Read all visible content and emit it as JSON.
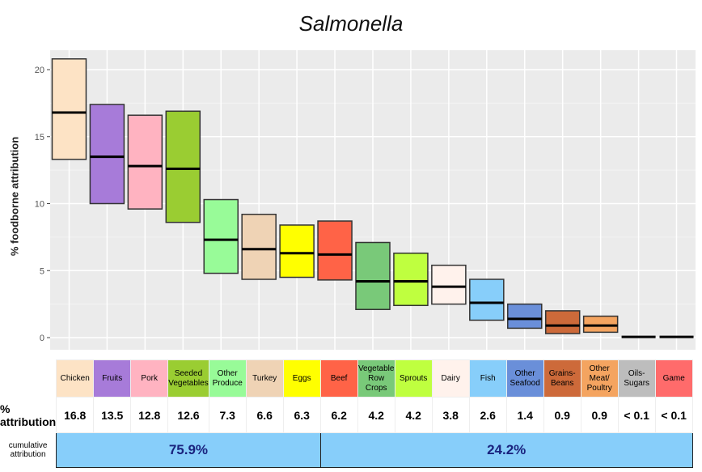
{
  "chart_data": {
    "type": "crossbar",
    "title": "Salmonella",
    "ylabel": "% foodborne attribution",
    "ylim": [
      -1,
      22
    ],
    "yticks": [
      0,
      5,
      10,
      15,
      20
    ],
    "grid": true,
    "categories": [
      "Chicken",
      "Fruits",
      "Pork",
      "Seeded Vegetables",
      "Other Produce",
      "Turkey",
      "Eggs",
      "Beef",
      "Vegetable Row Crops",
      "Sprouts",
      "Dairy",
      "Fish",
      "Other Seafood",
      "Grains-Beans",
      "Other Meat/ Poultry",
      "Oils-Sugars",
      "Game"
    ],
    "colors": [
      "#fde3c5",
      "#a77bd9",
      "#ffb3c1",
      "#9acd32",
      "#98fb98",
      "#efd3b5",
      "#ffff00",
      "#ff6347",
      "#79c979",
      "#bfff3f",
      "#fff2ec",
      "#87cefa",
      "#6a8fd9",
      "#cd6a3a",
      "#f4a460",
      "#bdbdbd",
      "#ff6b6b"
    ],
    "mid": [
      16.8,
      13.5,
      12.8,
      12.6,
      7.3,
      6.6,
      6.3,
      6.2,
      4.2,
      4.2,
      3.8,
      2.6,
      1.4,
      0.9,
      0.9,
      0.05,
      0.05
    ],
    "low": [
      13.3,
      10.0,
      9.6,
      8.6,
      4.8,
      4.35,
      4.5,
      4.3,
      2.1,
      2.4,
      2.5,
      1.3,
      0.7,
      0.3,
      0.4,
      0.05,
      0.05
    ],
    "high": [
      20.8,
      17.4,
      16.6,
      16.9,
      10.3,
      9.2,
      8.4,
      8.7,
      7.1,
      6.3,
      5.4,
      4.35,
      2.5,
      2.0,
      1.6,
      0.05,
      0.05
    ]
  },
  "table": {
    "row_attribution_label": "% attribution",
    "values": [
      "16.8",
      "13.5",
      "12.8",
      "12.6",
      "7.3",
      "6.6",
      "6.3",
      "6.2",
      "4.2",
      "4.2",
      "3.8",
      "2.6",
      "1.4",
      "0.9",
      "0.9",
      "< 0.1",
      "< 0.1"
    ],
    "row_cumulative_label": "cumulative attribution",
    "cumulative": [
      "75.9%",
      "24.2%"
    ]
  }
}
